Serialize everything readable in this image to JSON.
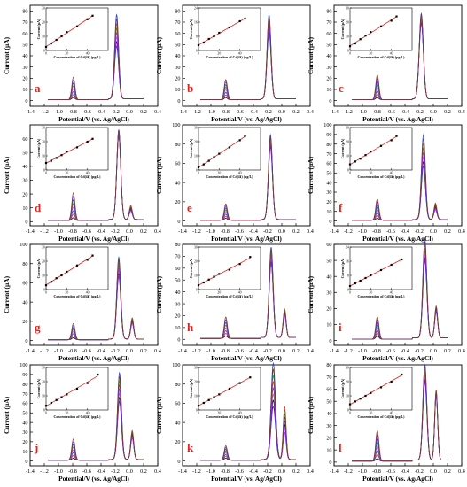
{
  "figure": {
    "panel_letters": [
      "a",
      "b",
      "c",
      "d",
      "e",
      "f",
      "g",
      "h",
      "i",
      "j",
      "k",
      "l"
    ],
    "ylabel": "Current (µA)",
    "xlabel": "Potential/V (vs. Ag/AgCl)",
    "inset_xlabel": "Concentration of Cd(Ⅱ) (µg/L)",
    "inset_ylabel": "Current (µA)",
    "colors": {
      "letter": "#e8211d",
      "fit_line": "#e8211d",
      "curves": [
        "#000000",
        "#e8211d",
        "#1f3bd6",
        "#e040fb",
        "#1aa04a",
        "#3f2ad1",
        "#8a2be2",
        "#7a3b1c",
        "#7f7f7f",
        "#ff1493"
      ]
    }
  },
  "chart_data": [
    {
      "letter": "a",
      "type": "line",
      "xlim": [
        -1.4,
        0.4
      ],
      "ylim": [
        -5,
        85
      ],
      "xticks": [
        -1.4,
        -1.2,
        -1.0,
        -0.8,
        -0.6,
        -0.4,
        -0.2,
        0.0,
        0.2,
        0.4
      ],
      "yticks": [
        0,
        10,
        20,
        30,
        40,
        50,
        60,
        70,
        80
      ],
      "n_curves": 8,
      "cd": {
        "x": -0.79,
        "min": 2,
        "max": 20,
        "width": 0.032
      },
      "pb": {
        "x": -0.18,
        "min": 47,
        "max": 75,
        "width": 0.04
      },
      "cu": {
        "x": 0.02,
        "min": 0,
        "max": 0,
        "width": 0.03
      },
      "inset": {
        "xlim": [
          0,
          60
        ],
        "ylim": [
          0,
          30
        ],
        "xticks": [
          0,
          20,
          40
        ],
        "yticks": [
          0,
          10,
          20,
          30
        ],
        "x": [
          0,
          5,
          10,
          15,
          20,
          30,
          40,
          45
        ],
        "y": [
          2.5,
          5,
          7.5,
          10,
          13,
          17,
          22,
          24.5
        ]
      }
    },
    {
      "letter": "b",
      "type": "line",
      "xlim": [
        -1.4,
        0.4
      ],
      "ylim": [
        -5,
        85
      ],
      "xticks": [
        -1.4,
        -1.2,
        -1.0,
        -0.8,
        -0.6,
        -0.4,
        -0.2,
        0.0,
        0.2,
        0.4
      ],
      "yticks": [
        0,
        10,
        20,
        30,
        40,
        50,
        60,
        70,
        80
      ],
      "n_curves": 8,
      "cd": {
        "x": -0.79,
        "min": 2,
        "max": 18,
        "width": 0.032
      },
      "pb": {
        "x": -0.18,
        "min": 60,
        "max": 75,
        "width": 0.04
      },
      "cu": {
        "x": 0.02,
        "min": 0,
        "max": 0,
        "width": 0.03
      },
      "inset": {
        "xlim": [
          0,
          60
        ],
        "ylim": [
          0,
          24
        ],
        "xticks": [
          0,
          20,
          40
        ],
        "yticks": [
          0,
          8,
          16,
          24
        ],
        "x": [
          0,
          5,
          10,
          15,
          20,
          30,
          40,
          45
        ],
        "y": [
          3,
          4.5,
          6.5,
          8,
          10,
          13,
          16.5,
          18
        ]
      }
    },
    {
      "letter": "c",
      "type": "line",
      "xlim": [
        -1.4,
        0.4
      ],
      "ylim": [
        -5,
        85
      ],
      "xticks": [
        -1.4,
        -1.2,
        -1.0,
        -0.8,
        -0.6,
        -0.4,
        -0.2,
        0.0,
        0.2,
        0.4
      ],
      "yticks": [
        0,
        10,
        20,
        30,
        40,
        50,
        60,
        70,
        80
      ],
      "n_curves": 8,
      "cd": {
        "x": -0.79,
        "min": 2,
        "max": 22,
        "width": 0.032
      },
      "pb": {
        "x": -0.17,
        "min": 67,
        "max": 76,
        "width": 0.042
      },
      "cu": {
        "x": 0.02,
        "min": 0,
        "max": 0,
        "width": 0.03
      },
      "inset": {
        "xlim": [
          0,
          60
        ],
        "ylim": [
          0,
          30
        ],
        "xticks": [
          0,
          20,
          40
        ],
        "yticks": [
          0,
          10,
          20,
          30
        ],
        "x": [
          0,
          5,
          10,
          15,
          20,
          30,
          40,
          45
        ],
        "y": [
          3,
          5,
          8,
          10.5,
          13,
          17,
          21,
          24
        ]
      }
    },
    {
      "letter": "d",
      "type": "line",
      "xlim": [
        -1.4,
        0.4
      ],
      "ylim": [
        -3,
        70
      ],
      "xticks": [
        -1.4,
        -1.2,
        -1.0,
        -0.8,
        -0.6,
        -0.4,
        -0.2,
        0.0,
        0.2,
        0.4
      ],
      "yticks": [
        0,
        10,
        20,
        30,
        40,
        50,
        60
      ],
      "n_curves": 8,
      "cd": {
        "x": -0.79,
        "min": 2,
        "max": 20,
        "width": 0.032
      },
      "pb": {
        "x": -0.15,
        "min": 60,
        "max": 65,
        "width": 0.04
      },
      "cu": {
        "x": 0.02,
        "min": 6,
        "max": 10,
        "width": 0.03
      },
      "inset": {
        "xlim": [
          0,
          60
        ],
        "ylim": [
          0,
          30
        ],
        "xticks": [
          0,
          20,
          40
        ],
        "yticks": [
          0,
          10,
          20,
          30
        ],
        "x": [
          0,
          5,
          10,
          15,
          20,
          30,
          40,
          45
        ],
        "y": [
          5,
          6.5,
          8.5,
          10.5,
          13,
          16,
          20,
          22
        ]
      }
    },
    {
      "letter": "e",
      "type": "line",
      "xlim": [
        -1.4,
        0.4
      ],
      "ylim": [
        -5,
        100
      ],
      "xticks": [
        -1.4,
        -1.2,
        -1.0,
        -0.8,
        -0.6,
        -0.4,
        -0.2,
        0.0,
        0.2,
        0.4
      ],
      "yticks": [
        0,
        20,
        40,
        60,
        80,
        100
      ],
      "n_curves": 8,
      "cd": {
        "x": -0.79,
        "min": 2,
        "max": 17,
        "width": 0.032
      },
      "pb": {
        "x": -0.16,
        "min": 75,
        "max": 88,
        "width": 0.04
      },
      "cu": {
        "x": 0.02,
        "min": 0,
        "max": 0,
        "width": 0.03
      },
      "inset": {
        "xlim": [
          0,
          60
        ],
        "ylim": [
          0,
          30
        ],
        "xticks": [
          0,
          20,
          40
        ],
        "yticks": [
          0,
          10,
          20,
          30
        ],
        "x": [
          0,
          5,
          10,
          15,
          20,
          30,
          40,
          45
        ],
        "y": [
          2,
          4,
          6.5,
          9,
          11.5,
          16,
          21,
          24
        ]
      }
    },
    {
      "letter": "f",
      "type": "line",
      "xlim": [
        -1.4,
        0.4
      ],
      "ylim": [
        -5,
        100
      ],
      "xticks": [
        -1.4,
        -1.2,
        -1.0,
        -0.8,
        -0.6,
        -0.4,
        -0.2,
        0.0,
        0.2,
        0.4
      ],
      "yticks": [
        0,
        10,
        20,
        30,
        40,
        50,
        60,
        70,
        80,
        90,
        100
      ],
      "n_curves": 8,
      "cd": {
        "x": -0.79,
        "min": 2,
        "max": 22,
        "width": 0.032
      },
      "pb": {
        "x": -0.14,
        "min": 55,
        "max": 88,
        "width": 0.04
      },
      "cu": {
        "x": 0.03,
        "min": 10,
        "max": 17,
        "width": 0.03
      },
      "inset": {
        "xlim": [
          0,
          60
        ],
        "ylim": [
          0,
          30
        ],
        "xticks": [
          0,
          20,
          40
        ],
        "yticks": [
          0,
          10,
          20,
          30
        ],
        "x": [
          0,
          5,
          10,
          15,
          20,
          30,
          40,
          45
        ],
        "y": [
          4,
          6,
          8,
          10.5,
          13,
          17,
          21,
          24
        ]
      }
    },
    {
      "letter": "g",
      "type": "line",
      "xlim": [
        -1.4,
        0.4
      ],
      "ylim": [
        -5,
        100
      ],
      "xticks": [
        -1.4,
        -1.2,
        -1.0,
        -0.8,
        -0.6,
        -0.4,
        -0.2,
        0.0,
        0.2,
        0.4
      ],
      "yticks": [
        0,
        20,
        40,
        60,
        80,
        100
      ],
      "n_curves": 8,
      "cd": {
        "x": -0.79,
        "min": 2,
        "max": 17,
        "width": 0.032
      },
      "pb": {
        "x": -0.15,
        "min": 65,
        "max": 85,
        "width": 0.04
      },
      "cu": {
        "x": 0.04,
        "min": 16,
        "max": 22,
        "width": 0.03
      },
      "inset": {
        "xlim": [
          0,
          60
        ],
        "ylim": [
          0,
          30
        ],
        "xticks": [
          0,
          20,
          40
        ],
        "yticks": [
          0,
          10,
          20,
          30
        ],
        "x": [
          0,
          5,
          10,
          15,
          20,
          30,
          40,
          45
        ],
        "y": [
          3,
          5.5,
          8,
          10,
          12.5,
          17,
          21,
          24
        ]
      }
    },
    {
      "letter": "h",
      "type": "line",
      "xlim": [
        -1.4,
        0.4
      ],
      "ylim": [
        -5,
        80
      ],
      "xticks": [
        -1.4,
        -1.2,
        -1.0,
        -0.8,
        -0.6,
        -0.4,
        -0.2,
        0.0,
        0.2,
        0.4
      ],
      "yticks": [
        0,
        10,
        20,
        30,
        40,
        50,
        60,
        70,
        80
      ],
      "n_curves": 8,
      "cd": {
        "x": -0.79,
        "min": 2,
        "max": 18,
        "width": 0.032
      },
      "pb": {
        "x": -0.15,
        "min": 62,
        "max": 76,
        "width": 0.04
      },
      "cu": {
        "x": 0.04,
        "min": 18,
        "max": 24,
        "width": 0.03
      },
      "inset": {
        "xlim": [
          0,
          60
        ],
        "ylim": [
          0,
          30
        ],
        "xticks": [
          0,
          20,
          40
        ],
        "yticks": [
          0,
          10,
          20,
          30
        ],
        "x": [
          0,
          5,
          10,
          15,
          20,
          30,
          40,
          50
        ],
        "y": [
          3,
          5,
          7,
          9,
          11,
          14,
          18,
          23
        ]
      }
    },
    {
      "letter": "i",
      "type": "line",
      "xlim": [
        -1.4,
        0.4
      ],
      "ylim": [
        -3,
        60
      ],
      "xticks": [
        -1.4,
        -1.2,
        -1.0,
        -0.8,
        -0.6,
        -0.4,
        -0.2,
        0.0,
        0.2,
        0.4
      ],
      "yticks": [
        0,
        10,
        20,
        30,
        40,
        50,
        60
      ],
      "n_curves": 8,
      "cd": {
        "x": -0.79,
        "min": 2,
        "max": 14,
        "width": 0.032
      },
      "pb": {
        "x": -0.12,
        "min": 48,
        "max": 62,
        "width": 0.04
      },
      "cu": {
        "x": 0.04,
        "min": 16,
        "max": 20,
        "width": 0.03
      },
      "inset": {
        "xlim": [
          0,
          60
        ],
        "ylim": [
          0,
          24
        ],
        "xticks": [
          0,
          20,
          40
        ],
        "yticks": [
          0,
          8,
          16,
          24
        ],
        "x": [
          0,
          5,
          10,
          15,
          20,
          30,
          40,
          50
        ],
        "y": [
          2,
          3.5,
          5,
          6.5,
          8,
          11,
          14,
          17
        ]
      }
    },
    {
      "letter": "j",
      "type": "line",
      "xlim": [
        -1.4,
        0.4
      ],
      "ylim": [
        -5,
        100
      ],
      "xticks": [
        -1.4,
        -1.2,
        -1.0,
        -0.8,
        -0.6,
        -0.4,
        -0.2,
        0.0,
        0.2,
        0.4
      ],
      "yticks": [
        0,
        10,
        20,
        30,
        40,
        50,
        60,
        70,
        80,
        90,
        100
      ],
      "n_curves": 8,
      "cd": {
        "x": -0.79,
        "min": 2,
        "max": 22,
        "width": 0.032
      },
      "pb": {
        "x": -0.14,
        "min": 60,
        "max": 90,
        "width": 0.04
      },
      "cu": {
        "x": 0.04,
        "min": 22,
        "max": 30,
        "width": 0.03
      },
      "inset": {
        "xlim": [
          0,
          60
        ],
        "ylim": [
          0,
          30
        ],
        "xticks": [
          0,
          20,
          40
        ],
        "yticks": [
          0,
          10,
          20,
          30
        ],
        "x": [
          0,
          5,
          10,
          15,
          20,
          30,
          40,
          50
        ],
        "y": [
          3,
          5,
          7,
          9,
          11,
          15,
          19,
          25
        ]
      }
    },
    {
      "letter": "k",
      "type": "line",
      "xlim": [
        -1.4,
        0.4
      ],
      "ylim": [
        -5,
        100
      ],
      "xticks": [
        -1.4,
        -1.2,
        -1.0,
        -0.8,
        -0.6,
        -0.4,
        -0.2,
        0.0,
        0.2,
        0.4
      ],
      "yticks": [
        0,
        20,
        40,
        60,
        80,
        100
      ],
      "n_curves": 8,
      "cd": {
        "x": -0.79,
        "min": 2,
        "max": 15,
        "width": 0.032
      },
      "pb": {
        "x": -0.12,
        "min": 55,
        "max": 100,
        "width": 0.045
      },
      "cu": {
        "x": 0.04,
        "min": 28,
        "max": 55,
        "width": 0.03
      },
      "inset": {
        "xlim": [
          0,
          60
        ],
        "ylim": [
          0,
          30
        ],
        "xticks": [
          0,
          20,
          40
        ],
        "yticks": [
          0,
          10,
          20,
          30
        ],
        "x": [
          0,
          5,
          10,
          15,
          20,
          30,
          40,
          50
        ],
        "y": [
          3,
          5,
          7,
          9,
          11,
          15,
          19,
          23
        ]
      }
    },
    {
      "letter": "l",
      "type": "line",
      "xlim": [
        -1.4,
        0.4
      ],
      "ylim": [
        -3,
        80
      ],
      "xticks": [
        -1.4,
        -1.2,
        -1.0,
        -0.8,
        -0.6,
        -0.4,
        -0.2,
        0.0,
        0.2,
        0.4
      ],
      "yticks": [
        0,
        10,
        20,
        30,
        40,
        50,
        60,
        70,
        80
      ],
      "n_curves": 8,
      "cd": {
        "x": -0.79,
        "min": 2,
        "max": 25,
        "width": 0.032
      },
      "pb": {
        "x": -0.12,
        "min": 64,
        "max": 79,
        "width": 0.04
      },
      "cu": {
        "x": 0.04,
        "min": 52,
        "max": 58,
        "width": 0.03
      },
      "inset": {
        "xlim": [
          0,
          60
        ],
        "ylim": [
          0,
          30
        ],
        "xticks": [
          0,
          20,
          40
        ],
        "yticks": [
          0,
          10,
          20,
          30
        ],
        "x": [
          0,
          5,
          10,
          15,
          20,
          30,
          40,
          50
        ],
        "y": [
          4,
          6,
          8,
          10,
          12,
          16,
          20,
          25
        ]
      }
    }
  ]
}
